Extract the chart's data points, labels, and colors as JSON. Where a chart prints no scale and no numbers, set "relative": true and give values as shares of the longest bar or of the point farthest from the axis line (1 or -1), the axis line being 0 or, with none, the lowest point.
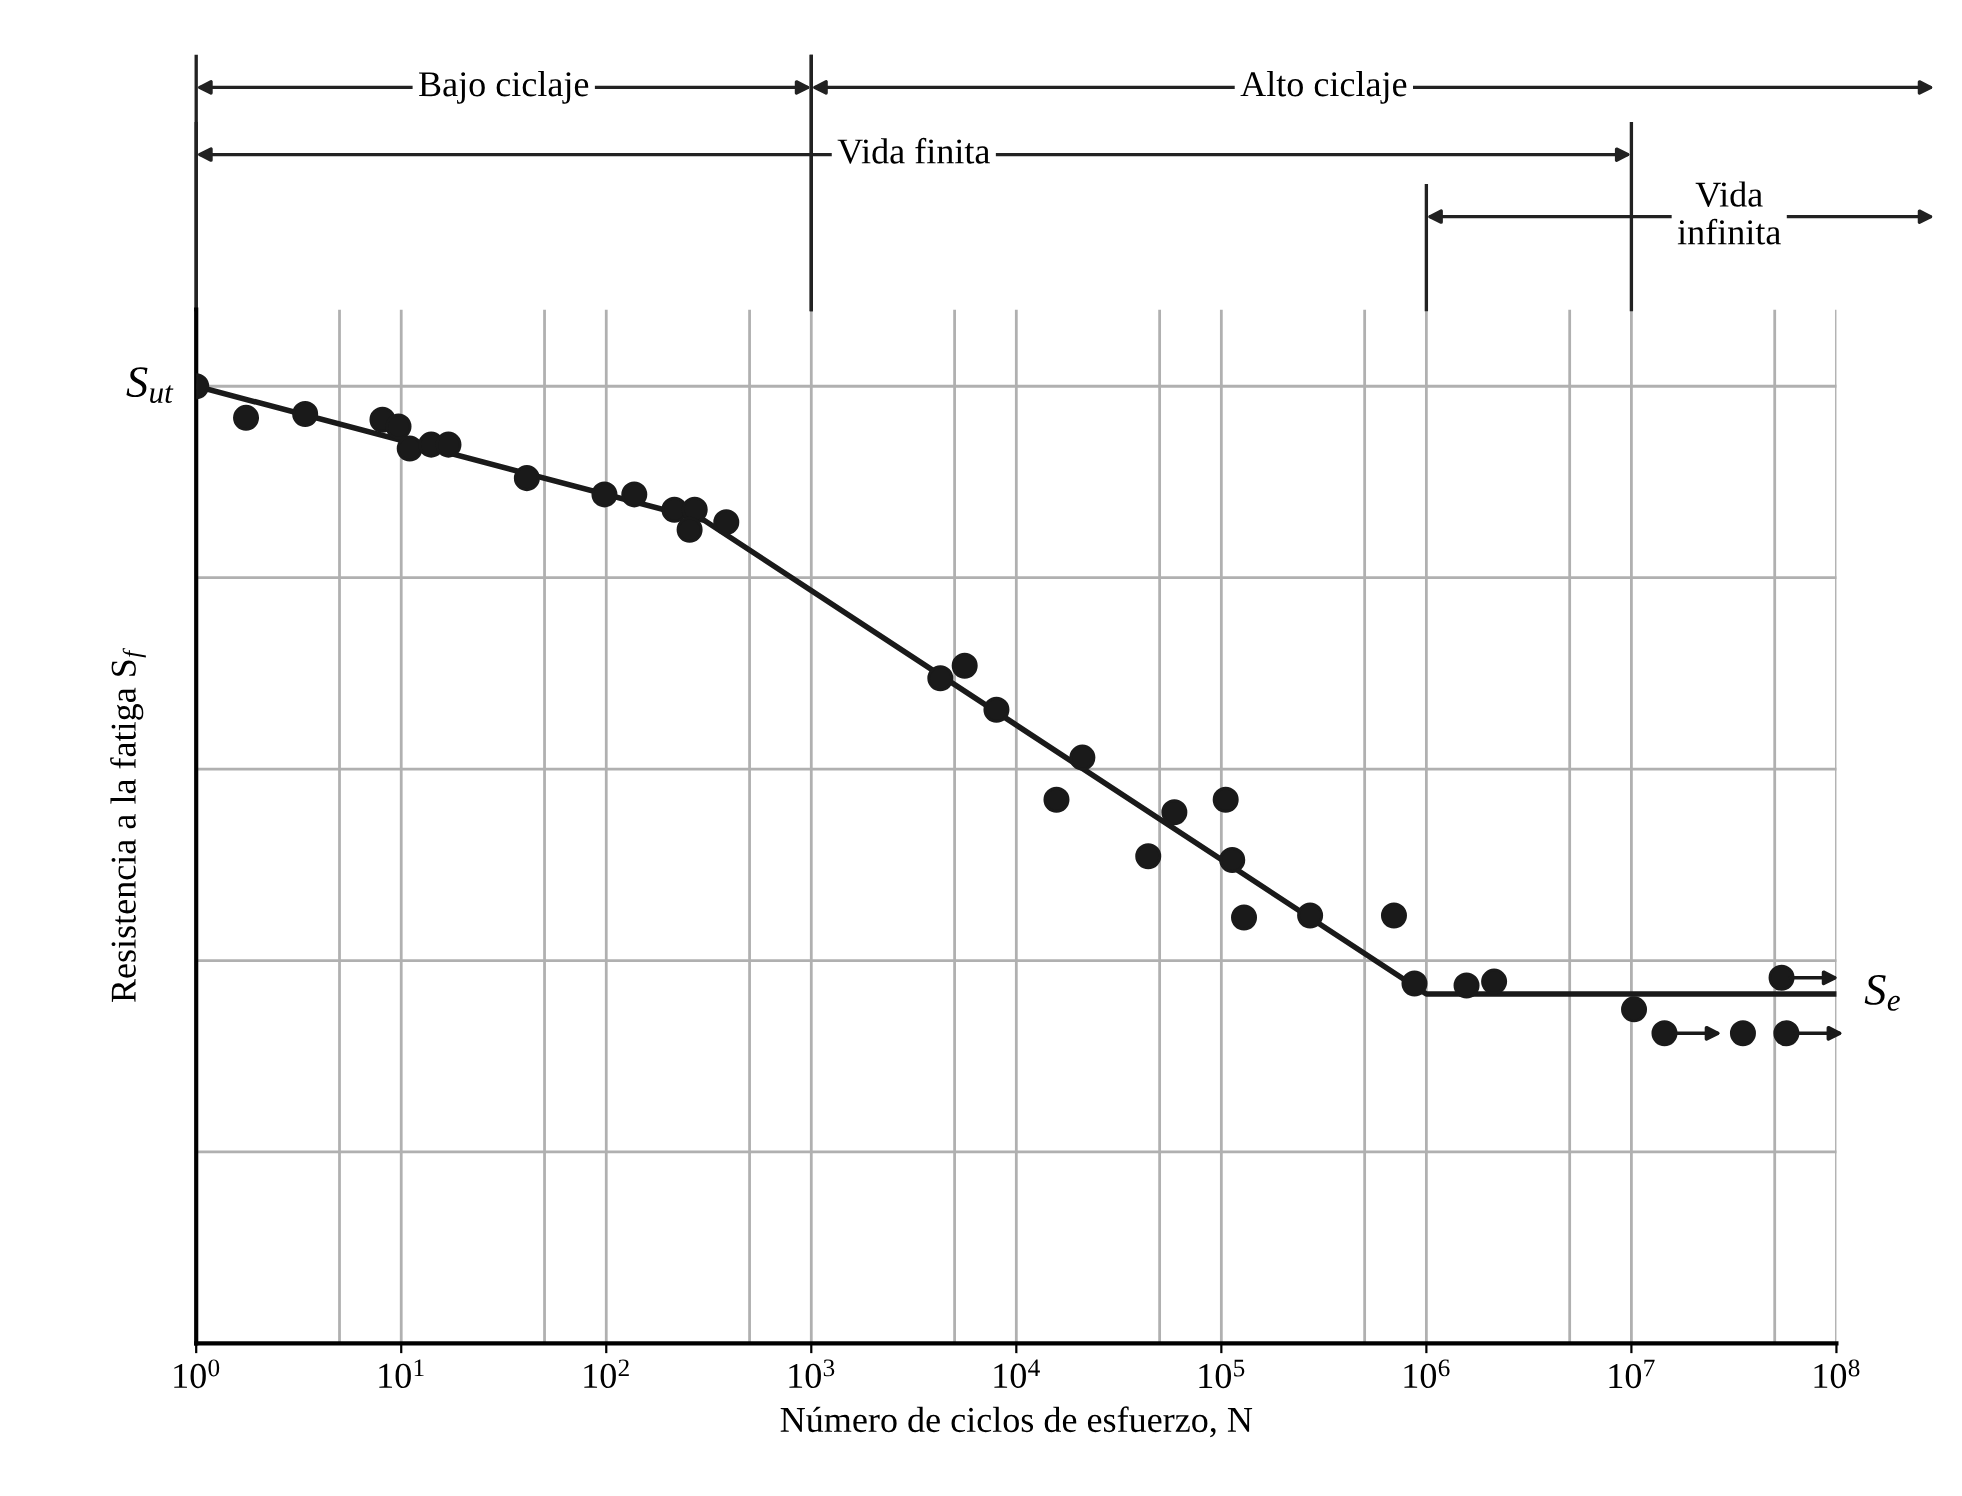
{
  "chart_data": {
    "type": "scatter",
    "relative": true,
    "log": "x",
    "xlabel": "Número de ciclos de esfuerzo, N",
    "ylabel": "Resistencia a la fatiga S$_{f}$",
    "xlim": [
      1,
      100000000
    ],
    "xticks": [
      {
        "value": 1,
        "label": "10$^{0}$"
      },
      {
        "value": 10,
        "label": "10$^{1}$"
      },
      {
        "value": 100,
        "label": "10$^{2}$"
      },
      {
        "value": 1000,
        "label": "10$^{3}$"
      },
      {
        "value": 10000,
        "label": "10$^{4}$"
      },
      {
        "value": 100000,
        "label": "10$^{5}$"
      },
      {
        "value": 1000000,
        "label": "10$^{6}$"
      },
      {
        "value": 10000000,
        "label": "10$^{7}$"
      },
      {
        "value": 100000000,
        "label": "10$^{8}$"
      }
    ],
    "grid": true,
    "marker": "circle",
    "series": [
      {
        "color": "#1a1a1a",
        "x": [
          1,
          1.75,
          3.4,
          8.1,
          9.7,
          11,
          14,
          17,
          41,
          98,
          137,
          215,
          270,
          255,
          385,
          4260,
          5600,
          8000,
          21000,
          15700,
          59000,
          105000,
          44000,
          113000,
          129000,
          271000,
          695000,
          875000,
          1570000,
          2140000,
          10300000,
          35000000
        ],
        "values": [
          1,
          0.967,
          0.971,
          0.965,
          0.958,
          0.935,
          0.939,
          0.939,
          0.904,
          0.887,
          0.887,
          0.871,
          0.871,
          0.85,
          0.858,
          0.695,
          0.708,
          0.662,
          0.612,
          0.568,
          0.555,
          0.568,
          0.509,
          0.505,
          0.445,
          0.447,
          0.447,
          0.376,
          0.374,
          0.378,
          0.349,
          0.324
        ]
      },
      {
        "color": "#1a1a1a",
        "x": [
          14500000,
          57000000,
          54000000
        ],
        "values": [
          0.324,
          0.324,
          0.382
        ]
      },
      {
        "type": "line",
        "color": "#1a1a1a",
        "marker": "none",
        "x": [
          1,
          300,
          1000000,
          100000000
        ],
        "values": [
          1,
          0.86,
          0.365,
          0.365
        ]
      }
    ],
    "annotations": [
      {
        "text": "S$_{ut}$",
        "x": 1,
        "y": 1
      },
      {
        "text": "S$_{e}$",
        "x": 100000000,
        "y": 0.365
      },
      "Bajo ciclaje",
      "Alto ciclaje",
      "Vida finita",
      "Vida\ninfinita"
    ]
  }
}
